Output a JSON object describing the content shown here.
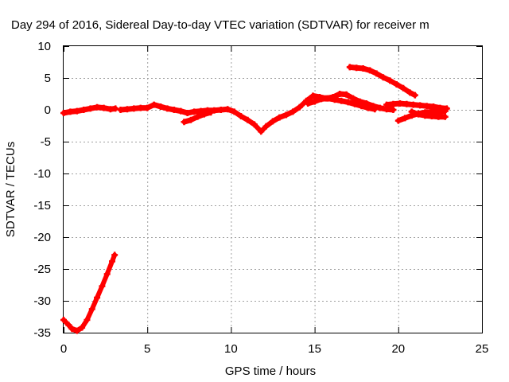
{
  "chart_data": {
    "type": "scatter",
    "title": "Day 294 of 2016, Sidereal Day-to-day VTEC variation (SDTVAR) for receiver m",
    "xlabel": "GPS time / hours",
    "ylabel": "SDTVAR / TECUs",
    "xlim": [
      0,
      25
    ],
    "ylim": [
      -35,
      10
    ],
    "xticks": [
      0,
      5,
      10,
      15,
      20,
      25
    ],
    "yticks": [
      10,
      5,
      0,
      -5,
      -10,
      -15,
      -20,
      -25,
      -30,
      -35
    ],
    "grid": true,
    "legend": "none",
    "color": "#ff0000",
    "series": [
      {
        "points": [
          [
            0.0,
            -33.0
          ],
          [
            0.3,
            -33.8
          ],
          [
            0.5,
            -34.4
          ],
          [
            0.8,
            -34.7
          ],
          [
            1.1,
            -34.2
          ],
          [
            1.4,
            -33.0
          ],
          [
            1.7,
            -31.3
          ],
          [
            2.0,
            -29.5
          ],
          [
            2.3,
            -27.7
          ],
          [
            2.6,
            -25.8
          ],
          [
            2.9,
            -23.8
          ],
          [
            3.05,
            -22.8
          ]
        ]
      },
      {
        "points": [
          [
            0.0,
            -0.5
          ],
          [
            0.4,
            -0.3
          ],
          [
            0.8,
            -0.2
          ],
          [
            1.2,
            0.0
          ],
          [
            1.6,
            0.2
          ],
          [
            2.0,
            0.4
          ],
          [
            2.4,
            0.3
          ],
          [
            2.8,
            0.1
          ],
          [
            3.1,
            0.2
          ]
        ]
      },
      {
        "points": [
          [
            3.4,
            0.0
          ],
          [
            3.8,
            0.1
          ],
          [
            4.2,
            0.2
          ],
          [
            4.6,
            0.3
          ],
          [
            5.0,
            0.3
          ],
          [
            5.4,
            0.8
          ],
          [
            5.8,
            0.5
          ],
          [
            6.2,
            0.2
          ],
          [
            6.6,
            0.0
          ],
          [
            7.0,
            -0.2
          ],
          [
            7.4,
            -0.5
          ],
          [
            7.8,
            -0.3
          ],
          [
            8.2,
            -0.2
          ],
          [
            8.6,
            -0.1
          ],
          [
            9.0,
            -0.1
          ],
          [
            9.4,
            0.0
          ],
          [
            9.8,
            0.1
          ],
          [
            10.2,
            -0.3
          ],
          [
            10.6,
            -1.0
          ],
          [
            11.0,
            -1.6
          ],
          [
            11.4,
            -2.3
          ],
          [
            11.8,
            -3.4
          ],
          [
            12.1,
            -2.6
          ],
          [
            12.5,
            -1.8
          ],
          [
            12.9,
            -1.2
          ],
          [
            13.3,
            -0.8
          ],
          [
            13.7,
            -0.3
          ],
          [
            14.1,
            0.4
          ],
          [
            14.5,
            1.4
          ],
          [
            14.9,
            2.2
          ],
          [
            15.3,
            2.0
          ],
          [
            15.7,
            1.8
          ],
          [
            16.1,
            2.0
          ],
          [
            16.5,
            2.5
          ],
          [
            16.9,
            2.4
          ],
          [
            17.3,
            1.8
          ],
          [
            17.7,
            1.3
          ],
          [
            18.1,
            1.0
          ],
          [
            18.5,
            0.6
          ],
          [
            18.9,
            0.3
          ],
          [
            19.3,
            0.1
          ],
          [
            19.7,
            0.0
          ]
        ]
      },
      {
        "points": [
          [
            7.2,
            -1.9
          ],
          [
            7.6,
            -1.6
          ],
          [
            8.0,
            -1.1
          ],
          [
            8.4,
            -0.7
          ],
          [
            8.8,
            -0.4
          ]
        ]
      },
      {
        "points": [
          [
            14.6,
            1.0
          ],
          [
            15.0,
            1.3
          ],
          [
            15.4,
            1.7
          ],
          [
            15.8,
            1.8
          ],
          [
            16.2,
            1.6
          ],
          [
            16.6,
            1.4
          ],
          [
            17.0,
            1.2
          ],
          [
            17.4,
            0.9
          ],
          [
            17.8,
            0.6
          ],
          [
            18.2,
            0.3
          ],
          [
            18.6,
            0.1
          ]
        ]
      },
      {
        "points": [
          [
            17.1,
            6.7
          ],
          [
            17.5,
            6.6
          ],
          [
            17.9,
            6.5
          ],
          [
            18.3,
            6.2
          ],
          [
            18.7,
            5.7
          ],
          [
            19.1,
            5.1
          ],
          [
            19.5,
            4.6
          ],
          [
            19.9,
            4.0
          ],
          [
            20.3,
            3.4
          ],
          [
            20.7,
            2.7
          ],
          [
            21.0,
            2.3
          ]
        ]
      },
      {
        "points": [
          [
            19.3,
            0.8
          ],
          [
            19.7,
            0.9
          ],
          [
            20.1,
            1.0
          ],
          [
            20.5,
            0.9
          ],
          [
            20.9,
            0.8
          ],
          [
            21.3,
            0.7
          ],
          [
            21.7,
            0.6
          ],
          [
            22.1,
            0.5
          ],
          [
            22.5,
            0.3
          ],
          [
            22.9,
            0.2
          ]
        ]
      },
      {
        "points": [
          [
            20.0,
            -1.7
          ],
          [
            20.4,
            -1.3
          ],
          [
            20.8,
            -0.9
          ],
          [
            21.2,
            -0.6
          ],
          [
            21.6,
            -0.4
          ],
          [
            22.0,
            -0.3
          ],
          [
            22.4,
            -0.3
          ],
          [
            22.8,
            -0.2
          ]
        ]
      },
      {
        "points": [
          [
            20.8,
            -0.3
          ],
          [
            21.2,
            -0.7
          ],
          [
            21.6,
            -0.9
          ],
          [
            22.0,
            -1.0
          ],
          [
            22.4,
            -1.1
          ],
          [
            22.8,
            -1.1
          ]
        ]
      }
    ]
  }
}
